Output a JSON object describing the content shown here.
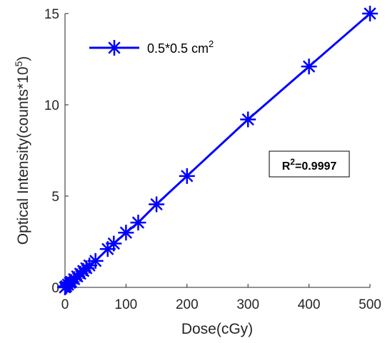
{
  "chart_data": {
    "type": "line",
    "xlabel": "Dose(cGy)",
    "ylabel_main": "Optical Intensity(counts*10",
    "ylabel_exp": "5",
    "ylabel_close": ")",
    "xlim": [
      0,
      500
    ],
    "ylim": [
      0,
      15
    ],
    "xticks": [
      0,
      100,
      200,
      300,
      400,
      500
    ],
    "yticks": [
      0,
      5,
      10,
      15
    ],
    "grid": false,
    "legend_position": "top-left",
    "series": [
      {
        "name": "0.5*0.5 cm",
        "name_exp": "2",
        "color": "#0000ff",
        "marker": "asterisk",
        "x": [
          0,
          2,
          5,
          8,
          10,
          15,
          20,
          25,
          30,
          35,
          40,
          50,
          70,
          80,
          100,
          120,
          150,
          200,
          300,
          400,
          500
        ],
        "y": [
          0.0,
          0.06,
          0.15,
          0.25,
          0.3,
          0.45,
          0.6,
          0.75,
          0.9,
          1.05,
          1.2,
          1.45,
          2.1,
          2.4,
          3.0,
          3.55,
          4.55,
          6.1,
          9.2,
          12.1,
          15.0
        ]
      }
    ],
    "annotation": {
      "prefix": "R",
      "exp": "2",
      "suffix": "=0.9997"
    }
  }
}
